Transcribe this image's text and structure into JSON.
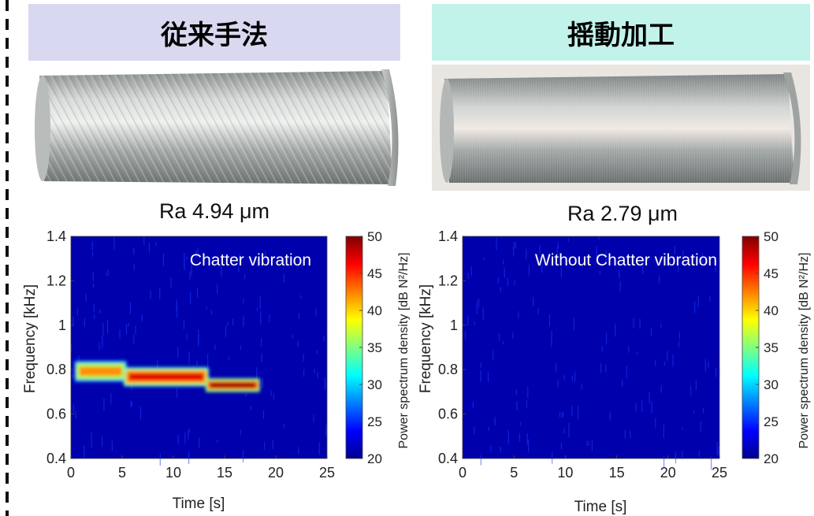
{
  "left": {
    "header": "従来手法",
    "roughness": "Ra 4.94 μm"
  },
  "right": {
    "header": "揺動加工",
    "roughness": "Ra 2.79 μm"
  },
  "chart_data": [
    {
      "type": "heatmap",
      "annotation": "Chatter vibration",
      "xlabel": "Time [s]",
      "ylabel": "Frequency [kHz]",
      "xlim": [
        0,
        25
      ],
      "ylim": [
        0.4,
        1.4
      ],
      "xticks": [
        "0",
        "5",
        "10",
        "15",
        "20",
        "25"
      ],
      "yticks": [
        "0.4",
        "0.6",
        "0.8",
        "1",
        "1.2",
        "1.4"
      ],
      "colorbar": {
        "label": "Power spectrum density [dB N²/Hz]",
        "range": [
          20,
          50
        ],
        "ticks": [
          "20",
          "25",
          "30",
          "35",
          "40",
          "45",
          "50"
        ]
      },
      "background_level": 21,
      "bands": [
        {
          "t_start": 0.5,
          "t_end": 5.3,
          "f_low": 0.755,
          "f_high": 0.83,
          "level": 42
        },
        {
          "t_start": 5.3,
          "t_end": 13.3,
          "f_low": 0.735,
          "f_high": 0.8,
          "level": 47
        },
        {
          "t_start": 13.3,
          "t_end": 18.3,
          "f_low": 0.71,
          "f_high": 0.75,
          "level": 49
        }
      ]
    },
    {
      "type": "heatmap",
      "annotation": "Without Chatter vibration",
      "xlabel": "Time [s]",
      "ylabel": "Frequency [kHz]",
      "xlim": [
        0,
        25
      ],
      "ylim": [
        0.4,
        1.4
      ],
      "xticks": [
        "0",
        "5",
        "10",
        "15",
        "20",
        "25"
      ],
      "yticks": [
        "0.4",
        "0.6",
        "0.8",
        "1",
        "1.2",
        "1.4"
      ],
      "colorbar": {
        "label": "Power spectrum density [dB N²/Hz]",
        "range": [
          20,
          50
        ],
        "ticks": [
          "20",
          "25",
          "30",
          "35",
          "40",
          "45",
          "50"
        ]
      },
      "background_level": 21,
      "bands": []
    }
  ]
}
